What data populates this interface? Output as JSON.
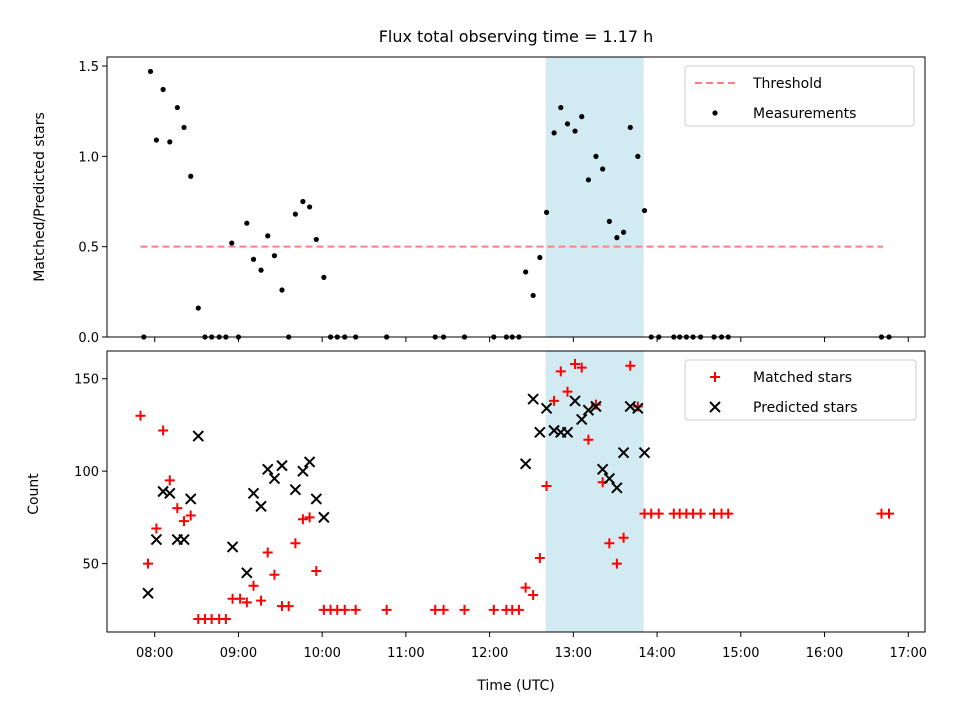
{
  "colors": {
    "threshold": "#ff7f7f",
    "measurement": "#000000",
    "matched": "#ff0000",
    "predicted": "#000000",
    "band": "#add8e6"
  },
  "chart_data": [
    {
      "type": "scatter",
      "title": "Flux total observing time = 1.17 h",
      "xlabel": "",
      "ylabel": "Matched/Predicted stars",
      "xlim_hours": [
        7.43,
        17.2
      ],
      "ylim": [
        0,
        1.55
      ],
      "yticks": [
        0.0,
        0.5,
        1.0,
        1.5
      ],
      "ytick_labels": [
        "0.0",
        "0.5",
        "1.0",
        "1.5"
      ],
      "highlight_band_hours": [
        12.67,
        13.84
      ],
      "threshold": {
        "name": "Threshold",
        "value": 0.5,
        "x_range_hours": [
          7.83,
          16.7
        ]
      },
      "legend": {
        "position": "top-right",
        "entries": [
          "Threshold",
          "Measurements"
        ]
      },
      "series": [
        {
          "name": "Measurements",
          "points": [
            [
              7.87,
              0.0
            ],
            [
              7.95,
              1.47
            ],
            [
              8.02,
              1.09
            ],
            [
              8.1,
              1.37
            ],
            [
              8.18,
              1.08
            ],
            [
              8.27,
              1.27
            ],
            [
              8.35,
              1.16
            ],
            [
              8.43,
              0.89
            ],
            [
              8.52,
              0.16
            ],
            [
              8.6,
              0.0
            ],
            [
              8.68,
              0.0
            ],
            [
              8.77,
              0.0
            ],
            [
              8.85,
              0.0
            ],
            [
              8.92,
              0.52
            ],
            [
              9.0,
              0.0
            ],
            [
              9.1,
              0.63
            ],
            [
              9.18,
              0.43
            ],
            [
              9.27,
              0.37
            ],
            [
              9.35,
              0.56
            ],
            [
              9.43,
              0.45
            ],
            [
              9.52,
              0.26
            ],
            [
              9.6,
              0.0
            ],
            [
              9.68,
              0.68
            ],
            [
              9.77,
              0.75
            ],
            [
              9.85,
              0.72
            ],
            [
              9.93,
              0.54
            ],
            [
              10.02,
              0.33
            ],
            [
              10.1,
              0.0
            ],
            [
              10.18,
              0.0
            ],
            [
              10.27,
              0.0
            ],
            [
              10.4,
              0.0
            ],
            [
              10.77,
              0.0
            ],
            [
              11.35,
              0.0
            ],
            [
              11.45,
              0.0
            ],
            [
              11.7,
              0.0
            ],
            [
              12.05,
              0.0
            ],
            [
              12.2,
              0.0
            ],
            [
              12.27,
              0.0
            ],
            [
              12.35,
              0.0
            ],
            [
              12.43,
              0.36
            ],
            [
              12.52,
              0.23
            ],
            [
              12.6,
              0.44
            ],
            [
              12.68,
              0.69
            ],
            [
              12.77,
              1.13
            ],
            [
              12.85,
              1.27
            ],
            [
              12.93,
              1.18
            ],
            [
              13.02,
              1.14
            ],
            [
              13.1,
              1.22
            ],
            [
              13.18,
              0.87
            ],
            [
              13.27,
              1.0
            ],
            [
              13.35,
              0.93
            ],
            [
              13.43,
              0.64
            ],
            [
              13.52,
              0.55
            ],
            [
              13.6,
              0.58
            ],
            [
              13.68,
              1.16
            ],
            [
              13.77,
              1.0
            ],
            [
              13.85,
              0.7
            ],
            [
              13.93,
              0.0
            ],
            [
              14.02,
              0.0
            ],
            [
              14.2,
              0.0
            ],
            [
              14.27,
              0.0
            ],
            [
              14.35,
              0.0
            ],
            [
              14.43,
              0.0
            ],
            [
              14.52,
              0.0
            ],
            [
              14.68,
              0.0
            ],
            [
              14.77,
              0.0
            ],
            [
              14.85,
              0.0
            ],
            [
              16.68,
              0.0
            ],
            [
              16.77,
              0.0
            ]
          ]
        }
      ]
    },
    {
      "type": "scatter",
      "title": "",
      "xlabel": "Time (UTC)",
      "ylabel": "Count",
      "xlim_hours": [
        7.43,
        17.2
      ],
      "ylim": [
        13,
        165
      ],
      "yticks": [
        50,
        100,
        150
      ],
      "ytick_labels": [
        "50",
        "100",
        "150"
      ],
      "xticks_hours": [
        8,
        9,
        10,
        11,
        12,
        13,
        14,
        15,
        16,
        17
      ],
      "xtick_labels": [
        "08:00",
        "09:00",
        "10:00",
        "11:00",
        "12:00",
        "13:00",
        "14:00",
        "15:00",
        "16:00",
        "17:00"
      ],
      "highlight_band_hours": [
        12.67,
        13.84
      ],
      "legend": {
        "position": "top-right",
        "entries": [
          "Matched stars",
          "Predicted stars"
        ]
      },
      "series": [
        {
          "name": "Matched stars",
          "points": [
            [
              7.83,
              130
            ],
            [
              7.92,
              50
            ],
            [
              8.02,
              69
            ],
            [
              8.1,
              122
            ],
            [
              8.18,
              95
            ],
            [
              8.27,
              80
            ],
            [
              8.35,
              73
            ],
            [
              8.43,
              76
            ],
            [
              8.52,
              20
            ],
            [
              8.6,
              20
            ],
            [
              8.68,
              20
            ],
            [
              8.77,
              20
            ],
            [
              8.85,
              20
            ],
            [
              8.93,
              31
            ],
            [
              9.02,
              31
            ],
            [
              9.1,
              29
            ],
            [
              9.18,
              38
            ],
            [
              9.27,
              30
            ],
            [
              9.35,
              56
            ],
            [
              9.43,
              44
            ],
            [
              9.52,
              27
            ],
            [
              9.6,
              27
            ],
            [
              9.68,
              61
            ],
            [
              9.77,
              74
            ],
            [
              9.85,
              75
            ],
            [
              9.93,
              46
            ],
            [
              10.02,
              25
            ],
            [
              10.1,
              25
            ],
            [
              10.18,
              25
            ],
            [
              10.27,
              25
            ],
            [
              10.4,
              25
            ],
            [
              10.77,
              25
            ],
            [
              11.35,
              25
            ],
            [
              11.45,
              25
            ],
            [
              11.7,
              25
            ],
            [
              12.05,
              25
            ],
            [
              12.2,
              25
            ],
            [
              12.27,
              25
            ],
            [
              12.35,
              25
            ],
            [
              12.43,
              37
            ],
            [
              12.52,
              33
            ],
            [
              12.6,
              53
            ],
            [
              12.68,
              92
            ],
            [
              12.77,
              138
            ],
            [
              12.85,
              154
            ],
            [
              12.93,
              143
            ],
            [
              13.02,
              158
            ],
            [
              13.1,
              156
            ],
            [
              13.18,
              117
            ],
            [
              13.27,
              136
            ],
            [
              13.35,
              94
            ],
            [
              13.43,
              61
            ],
            [
              13.52,
              50
            ],
            [
              13.6,
              64
            ],
            [
              13.68,
              157
            ],
            [
              13.77,
              135
            ],
            [
              13.85,
              77
            ],
            [
              13.93,
              77
            ],
            [
              14.02,
              77
            ],
            [
              14.2,
              77
            ],
            [
              14.27,
              77
            ],
            [
              14.35,
              77
            ],
            [
              14.43,
              77
            ],
            [
              14.52,
              77
            ],
            [
              14.68,
              77
            ],
            [
              14.77,
              77
            ],
            [
              14.85,
              77
            ],
            [
              16.68,
              77
            ],
            [
              16.77,
              77
            ]
          ]
        },
        {
          "name": "Predicted stars",
          "points": [
            [
              7.92,
              34
            ],
            [
              8.02,
              63
            ],
            [
              8.1,
              89
            ],
            [
              8.18,
              88
            ],
            [
              8.27,
              63
            ],
            [
              8.35,
              63
            ],
            [
              8.43,
              85
            ],
            [
              8.52,
              119
            ],
            [
              8.93,
              59
            ],
            [
              9.1,
              45
            ],
            [
              9.18,
              88
            ],
            [
              9.27,
              81
            ],
            [
              9.35,
              101
            ],
            [
              9.43,
              96
            ],
            [
              9.52,
              103
            ],
            [
              9.68,
              90
            ],
            [
              9.77,
              100
            ],
            [
              9.85,
              105
            ],
            [
              9.93,
              85
            ],
            [
              10.02,
              75
            ],
            [
              12.43,
              104
            ],
            [
              12.52,
              139
            ],
            [
              12.6,
              121
            ],
            [
              12.68,
              134
            ],
            [
              12.77,
              122
            ],
            [
              12.85,
              121
            ],
            [
              12.93,
              121
            ],
            [
              13.02,
              138
            ],
            [
              13.1,
              128
            ],
            [
              13.18,
              133
            ],
            [
              13.27,
              135
            ],
            [
              13.35,
              101
            ],
            [
              13.43,
              96
            ],
            [
              13.52,
              91
            ],
            [
              13.6,
              110
            ],
            [
              13.68,
              135
            ],
            [
              13.77,
              134
            ],
            [
              13.85,
              110
            ]
          ]
        }
      ]
    }
  ]
}
